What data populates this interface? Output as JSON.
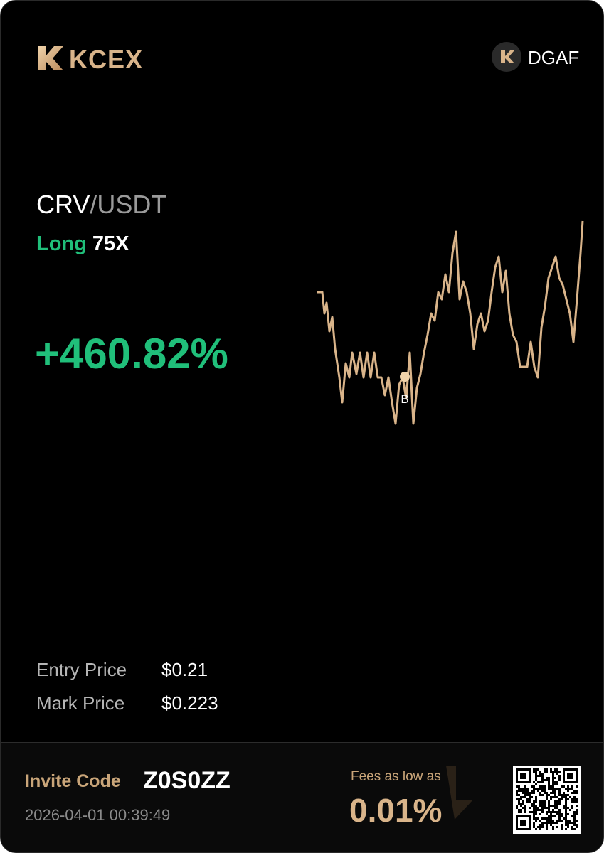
{
  "header": {
    "brand": "KCEX",
    "user": "DGAF"
  },
  "position": {
    "base": "CRV",
    "quote": "/USDT",
    "side": "Long",
    "leverage": "75X",
    "roi": "+460.82%",
    "marker": "B"
  },
  "details": [
    {
      "label": "Entry Price",
      "value": "$0.21"
    },
    {
      "label": "Mark Price",
      "value": "$0.223"
    }
  ],
  "footer": {
    "invite_label": "Invite Code",
    "invite_code": "Z0S0ZZ",
    "timestamp": "2026-04-01 00:39:49",
    "fees_label": "Fees as low as",
    "fees_value": "0.01%"
  }
}
